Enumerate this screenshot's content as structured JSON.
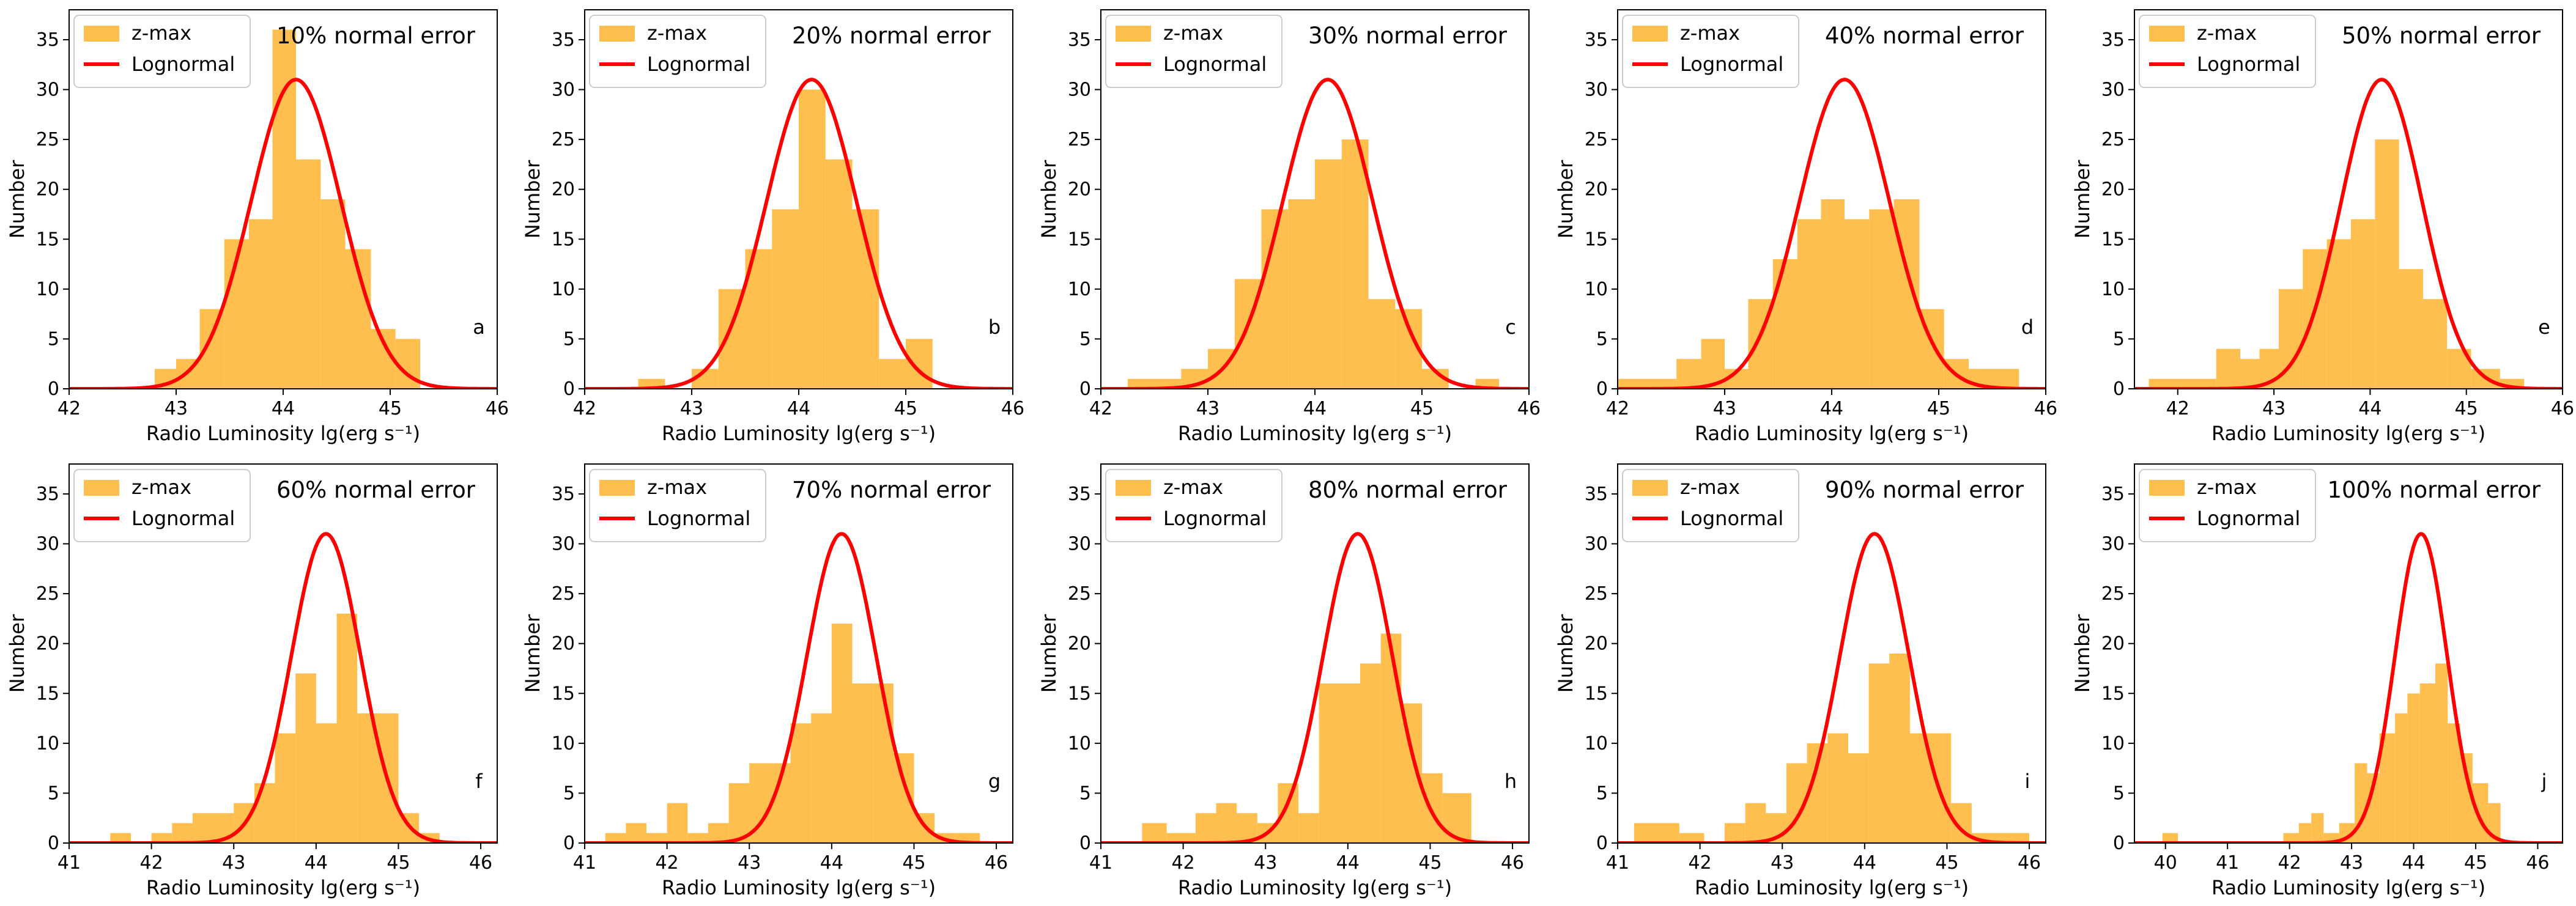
{
  "figure": {
    "colors": {
      "hist": "#FFBF4F",
      "curve": "#FF0000",
      "axis": "#000000"
    }
  },
  "chart_data": [
    {
      "type": "bar",
      "panel": "a",
      "title": "10% normal error",
      "xlabel": "Radio Luminosity lg(erg s⁻¹)",
      "ylabel": "Number",
      "xlim": [
        42,
        46
      ],
      "ylim": [
        0,
        38
      ],
      "xticks": [
        42,
        43,
        44,
        45,
        46
      ],
      "yticks": [
        0,
        5,
        10,
        15,
        20,
        25,
        30,
        35
      ],
      "legend": [
        "z-max",
        "Lognormal"
      ],
      "legend_position": "top-left",
      "lognormal": {
        "mean": 44.12,
        "sigma": 0.42,
        "peak": 31
      },
      "bins": [
        {
          "x0": 42.8,
          "x1": 43.0,
          "value": 2
        },
        {
          "x0": 43.0,
          "x1": 43.22,
          "value": 3
        },
        {
          "x0": 43.22,
          "x1": 43.45,
          "value": 8
        },
        {
          "x0": 43.45,
          "x1": 43.68,
          "value": 15
        },
        {
          "x0": 43.68,
          "x1": 43.9,
          "value": 17
        },
        {
          "x0": 43.9,
          "x1": 44.12,
          "value": 36
        },
        {
          "x0": 44.12,
          "x1": 44.35,
          "value": 23
        },
        {
          "x0": 44.35,
          "x1": 44.58,
          "value": 19
        },
        {
          "x0": 44.58,
          "x1": 44.82,
          "value": 14
        },
        {
          "x0": 44.82,
          "x1": 45.05,
          "value": 6
        },
        {
          "x0": 45.05,
          "x1": 45.28,
          "value": 5
        }
      ]
    },
    {
      "type": "bar",
      "panel": "b",
      "title": "20% normal error",
      "xlabel": "Radio Luminosity lg(erg s⁻¹)",
      "ylabel": "Number",
      "xlim": [
        42,
        46
      ],
      "ylim": [
        0,
        38
      ],
      "xticks": [
        42,
        43,
        44,
        45,
        46
      ],
      "yticks": [
        0,
        5,
        10,
        15,
        20,
        25,
        30,
        35
      ],
      "legend": [
        "z-max",
        "Lognormal"
      ],
      "legend_position": "top-left",
      "lognormal": {
        "mean": 44.12,
        "sigma": 0.42,
        "peak": 31
      },
      "bins": [
        {
          "x0": 42.5,
          "x1": 42.75,
          "value": 1
        },
        {
          "x0": 43.0,
          "x1": 43.25,
          "value": 2
        },
        {
          "x0": 43.25,
          "x1": 43.5,
          "value": 10
        },
        {
          "x0": 43.5,
          "x1": 43.75,
          "value": 14
        },
        {
          "x0": 43.75,
          "x1": 44.0,
          "value": 18
        },
        {
          "x0": 44.0,
          "x1": 44.25,
          "value": 30
        },
        {
          "x0": 44.25,
          "x1": 44.5,
          "value": 23
        },
        {
          "x0": 44.5,
          "x1": 44.75,
          "value": 18
        },
        {
          "x0": 44.75,
          "x1": 45.0,
          "value": 3
        },
        {
          "x0": 45.0,
          "x1": 45.25,
          "value": 5
        }
      ]
    },
    {
      "type": "bar",
      "panel": "c",
      "title": "30% normal error",
      "xlabel": "Radio Luminosity lg(erg s⁻¹)",
      "ylabel": "Number",
      "xlim": [
        42,
        46
      ],
      "ylim": [
        0,
        38
      ],
      "xticks": [
        42,
        43,
        44,
        45,
        46
      ],
      "yticks": [
        0,
        5,
        10,
        15,
        20,
        25,
        30,
        35
      ],
      "legend": [
        "z-max",
        "Lognormal"
      ],
      "legend_position": "top-left",
      "lognormal": {
        "mean": 44.12,
        "sigma": 0.42,
        "peak": 31
      },
      "bins": [
        {
          "x0": 42.25,
          "x1": 42.75,
          "value": 1
        },
        {
          "x0": 42.75,
          "x1": 43.0,
          "value": 2
        },
        {
          "x0": 43.0,
          "x1": 43.25,
          "value": 4
        },
        {
          "x0": 43.25,
          "x1": 43.5,
          "value": 11
        },
        {
          "x0": 43.5,
          "x1": 43.75,
          "value": 18
        },
        {
          "x0": 43.75,
          "x1": 44.0,
          "value": 19
        },
        {
          "x0": 44.0,
          "x1": 44.25,
          "value": 23
        },
        {
          "x0": 44.25,
          "x1": 44.5,
          "value": 25
        },
        {
          "x0": 44.5,
          "x1": 44.75,
          "value": 9
        },
        {
          "x0": 44.75,
          "x1": 45.0,
          "value": 8
        },
        {
          "x0": 45.0,
          "x1": 45.25,
          "value": 2
        },
        {
          "x0": 45.5,
          "x1": 45.72,
          "value": 1
        }
      ]
    },
    {
      "type": "bar",
      "panel": "d",
      "title": "40% normal error",
      "xlabel": "Radio Luminosity lg(erg s⁻¹)",
      "ylabel": "Number",
      "xlim": [
        42,
        46
      ],
      "ylim": [
        0,
        38
      ],
      "xticks": [
        42,
        43,
        44,
        45,
        46
      ],
      "yticks": [
        0,
        5,
        10,
        15,
        20,
        25,
        30,
        35
      ],
      "legend": [
        "z-max",
        "Lognormal"
      ],
      "legend_position": "top-left",
      "lognormal": {
        "mean": 44.12,
        "sigma": 0.42,
        "peak": 31
      },
      "bins": [
        {
          "x0": 42.0,
          "x1": 42.55,
          "value": 1
        },
        {
          "x0": 42.55,
          "x1": 42.78,
          "value": 3
        },
        {
          "x0": 42.78,
          "x1": 43.0,
          "value": 5
        },
        {
          "x0": 43.0,
          "x1": 43.22,
          "value": 2
        },
        {
          "x0": 43.22,
          "x1": 43.45,
          "value": 9
        },
        {
          "x0": 43.45,
          "x1": 43.68,
          "value": 13
        },
        {
          "x0": 43.68,
          "x1": 43.9,
          "value": 17
        },
        {
          "x0": 43.9,
          "x1": 44.12,
          "value": 19
        },
        {
          "x0": 44.12,
          "x1": 44.35,
          "value": 17
        },
        {
          "x0": 44.35,
          "x1": 44.58,
          "value": 18
        },
        {
          "x0": 44.58,
          "x1": 44.82,
          "value": 19
        },
        {
          "x0": 44.82,
          "x1": 45.05,
          "value": 8
        },
        {
          "x0": 45.05,
          "x1": 45.28,
          "value": 3
        },
        {
          "x0": 45.28,
          "x1": 45.75,
          "value": 2
        }
      ]
    },
    {
      "type": "bar",
      "panel": "e",
      "title": "50% normal error",
      "xlabel": "Radio Luminosity lg(erg s⁻¹)",
      "ylabel": "Number",
      "xlim": [
        41.55,
        46
      ],
      "ylim": [
        0,
        38
      ],
      "xticks": [
        42,
        43,
        44,
        45,
        46
      ],
      "yticks": [
        0,
        5,
        10,
        15,
        20,
        25,
        30,
        35
      ],
      "legend": [
        "z-max",
        "Lognormal"
      ],
      "legend_position": "top-left",
      "lognormal": {
        "mean": 44.12,
        "sigma": 0.42,
        "peak": 31
      },
      "bins": [
        {
          "x0": 41.7,
          "x1": 42.4,
          "value": 1
        },
        {
          "x0": 42.4,
          "x1": 42.65,
          "value": 4
        },
        {
          "x0": 42.65,
          "x1": 42.85,
          "value": 3
        },
        {
          "x0": 42.85,
          "x1": 43.05,
          "value": 4
        },
        {
          "x0": 43.05,
          "x1": 43.3,
          "value": 10
        },
        {
          "x0": 43.3,
          "x1": 43.55,
          "value": 14
        },
        {
          "x0": 43.55,
          "x1": 43.8,
          "value": 15
        },
        {
          "x0": 43.8,
          "x1": 44.05,
          "value": 17
        },
        {
          "x0": 44.05,
          "x1": 44.3,
          "value": 25
        },
        {
          "x0": 44.3,
          "x1": 44.55,
          "value": 12
        },
        {
          "x0": 44.55,
          "x1": 44.8,
          "value": 9
        },
        {
          "x0": 44.8,
          "x1": 45.05,
          "value": 4
        },
        {
          "x0": 45.05,
          "x1": 45.35,
          "value": 2
        },
        {
          "x0": 45.35,
          "x1": 45.6,
          "value": 1
        }
      ]
    },
    {
      "type": "bar",
      "panel": "f",
      "title": "60% normal error",
      "xlabel": "Radio Luminosity lg(erg s⁻¹)",
      "ylabel": "Number",
      "xlim": [
        41,
        46.2
      ],
      "ylim": [
        0,
        38
      ],
      "xticks": [
        41,
        42,
        43,
        44,
        45,
        46
      ],
      "yticks": [
        0,
        5,
        10,
        15,
        20,
        25,
        30,
        35
      ],
      "legend": [
        "z-max",
        "Lognormal"
      ],
      "legend_position": "top-left",
      "lognormal": {
        "mean": 44.12,
        "sigma": 0.42,
        "peak": 31
      },
      "bins": [
        {
          "x0": 41.5,
          "x1": 41.75,
          "value": 1
        },
        {
          "x0": 42.0,
          "x1": 42.25,
          "value": 1
        },
        {
          "x0": 42.25,
          "x1": 42.5,
          "value": 2
        },
        {
          "x0": 42.5,
          "x1": 43.0,
          "value": 3
        },
        {
          "x0": 43.0,
          "x1": 43.25,
          "value": 4
        },
        {
          "x0": 43.25,
          "x1": 43.5,
          "value": 6
        },
        {
          "x0": 43.5,
          "x1": 43.75,
          "value": 11
        },
        {
          "x0": 43.75,
          "x1": 44.0,
          "value": 17
        },
        {
          "x0": 44.0,
          "x1": 44.25,
          "value": 12
        },
        {
          "x0": 44.25,
          "x1": 44.5,
          "value": 23
        },
        {
          "x0": 44.5,
          "x1": 44.75,
          "value": 13
        },
        {
          "x0": 44.75,
          "x1": 45.0,
          "value": 13
        },
        {
          "x0": 45.0,
          "x1": 45.25,
          "value": 3
        },
        {
          "x0": 45.25,
          "x1": 45.5,
          "value": 1
        }
      ]
    },
    {
      "type": "bar",
      "panel": "g",
      "title": "70% normal error",
      "xlabel": "Radio Luminosity lg(erg s⁻¹)",
      "ylabel": "Number",
      "xlim": [
        41,
        46.2
      ],
      "ylim": [
        0,
        38
      ],
      "xticks": [
        41,
        42,
        43,
        44,
        45,
        46
      ],
      "yticks": [
        0,
        5,
        10,
        15,
        20,
        25,
        30,
        35
      ],
      "legend": [
        "z-max",
        "Lognormal"
      ],
      "legend_position": "top-left",
      "lognormal": {
        "mean": 44.12,
        "sigma": 0.42,
        "peak": 31
      },
      "bins": [
        {
          "x0": 41.25,
          "x1": 41.5,
          "value": 1
        },
        {
          "x0": 41.5,
          "x1": 41.75,
          "value": 2
        },
        {
          "x0": 41.75,
          "x1": 42.0,
          "value": 1
        },
        {
          "x0": 42.0,
          "x1": 42.25,
          "value": 4
        },
        {
          "x0": 42.25,
          "x1": 42.5,
          "value": 1
        },
        {
          "x0": 42.5,
          "x1": 42.75,
          "value": 2
        },
        {
          "x0": 42.75,
          "x1": 43.0,
          "value": 6
        },
        {
          "x0": 43.0,
          "x1": 43.25,
          "value": 8
        },
        {
          "x0": 43.25,
          "x1": 43.5,
          "value": 8
        },
        {
          "x0": 43.5,
          "x1": 43.75,
          "value": 12
        },
        {
          "x0": 43.75,
          "x1": 44.0,
          "value": 13
        },
        {
          "x0": 44.0,
          "x1": 44.25,
          "value": 22
        },
        {
          "x0": 44.25,
          "x1": 44.5,
          "value": 16
        },
        {
          "x0": 44.5,
          "x1": 44.75,
          "value": 16
        },
        {
          "x0": 44.75,
          "x1": 45.0,
          "value": 9
        },
        {
          "x0": 45.0,
          "x1": 45.25,
          "value": 3
        },
        {
          "x0": 45.25,
          "x1": 45.5,
          "value": 1
        },
        {
          "x0": 45.5,
          "x1": 45.8,
          "value": 1
        }
      ]
    },
    {
      "type": "bar",
      "panel": "h",
      "title": "80% normal error",
      "xlabel": "Radio Luminosity lg(erg s⁻¹)",
      "ylabel": "Number",
      "xlim": [
        41,
        46.2
      ],
      "ylim": [
        0,
        38
      ],
      "xticks": [
        41,
        42,
        43,
        44,
        45,
        46
      ],
      "yticks": [
        0,
        5,
        10,
        15,
        20,
        25,
        30,
        35
      ],
      "legend": [
        "z-max",
        "Lognormal"
      ],
      "legend_position": "top-left",
      "lognormal": {
        "mean": 44.12,
        "sigma": 0.42,
        "peak": 31
      },
      "bins": [
        {
          "x0": 41.5,
          "x1": 41.8,
          "value": 2
        },
        {
          "x0": 41.8,
          "x1": 42.15,
          "value": 1
        },
        {
          "x0": 42.15,
          "x1": 42.4,
          "value": 3
        },
        {
          "x0": 42.4,
          "x1": 42.65,
          "value": 4
        },
        {
          "x0": 42.65,
          "x1": 42.9,
          "value": 3
        },
        {
          "x0": 42.9,
          "x1": 43.15,
          "value": 2
        },
        {
          "x0": 43.15,
          "x1": 43.4,
          "value": 6
        },
        {
          "x0": 43.4,
          "x1": 43.65,
          "value": 3
        },
        {
          "x0": 43.65,
          "x1": 43.9,
          "value": 16
        },
        {
          "x0": 43.9,
          "x1": 44.15,
          "value": 16
        },
        {
          "x0": 44.15,
          "x1": 44.4,
          "value": 18
        },
        {
          "x0": 44.4,
          "x1": 44.65,
          "value": 21
        },
        {
          "x0": 44.65,
          "x1": 44.9,
          "value": 14
        },
        {
          "x0": 44.9,
          "x1": 45.15,
          "value": 7
        },
        {
          "x0": 45.15,
          "x1": 45.5,
          "value": 5
        }
      ]
    },
    {
      "type": "bar",
      "panel": "i",
      "title": "90% normal error",
      "xlabel": "Radio Luminosity lg(erg s⁻¹)",
      "ylabel": "Number",
      "xlim": [
        41,
        46.2
      ],
      "ylim": [
        0,
        38
      ],
      "xticks": [
        41,
        42,
        43,
        44,
        45,
        46
      ],
      "yticks": [
        0,
        5,
        10,
        15,
        20,
        25,
        30,
        35
      ],
      "legend": [
        "z-max",
        "Lognormal"
      ],
      "legend_position": "top-left",
      "lognormal": {
        "mean": 44.12,
        "sigma": 0.42,
        "peak": 31
      },
      "bins": [
        {
          "x0": 41.2,
          "x1": 41.75,
          "value": 2
        },
        {
          "x0": 41.75,
          "x1": 42.05,
          "value": 1
        },
        {
          "x0": 42.3,
          "x1": 42.55,
          "value": 2
        },
        {
          "x0": 42.55,
          "x1": 42.8,
          "value": 4
        },
        {
          "x0": 42.8,
          "x1": 43.05,
          "value": 3
        },
        {
          "x0": 43.05,
          "x1": 43.3,
          "value": 8
        },
        {
          "x0": 43.3,
          "x1": 43.55,
          "value": 10
        },
        {
          "x0": 43.55,
          "x1": 43.8,
          "value": 11
        },
        {
          "x0": 43.8,
          "x1": 44.05,
          "value": 9
        },
        {
          "x0": 44.05,
          "x1": 44.3,
          "value": 18
        },
        {
          "x0": 44.3,
          "x1": 44.55,
          "value": 19
        },
        {
          "x0": 44.55,
          "x1": 44.8,
          "value": 11
        },
        {
          "x0": 44.8,
          "x1": 45.05,
          "value": 11
        },
        {
          "x0": 45.05,
          "x1": 45.3,
          "value": 4
        },
        {
          "x0": 45.3,
          "x1": 46.0,
          "value": 1
        }
      ]
    },
    {
      "type": "bar",
      "panel": "j",
      "title": "100% normal error",
      "xlabel": "Radio Luminosity lg(erg s⁻¹)",
      "ylabel": "Number",
      "xlim": [
        39.5,
        46.4
      ],
      "ylim": [
        0,
        38
      ],
      "xticks": [
        40,
        41,
        42,
        43,
        44,
        45,
        46
      ],
      "yticks": [
        0,
        5,
        10,
        15,
        20,
        25,
        30,
        35
      ],
      "legend": [
        "z-max",
        "Lognormal"
      ],
      "legend_position": "top-left",
      "lognormal": {
        "mean": 44.12,
        "sigma": 0.42,
        "peak": 31
      },
      "bins": [
        {
          "x0": 39.95,
          "x1": 40.2,
          "value": 1
        },
        {
          "x0": 41.9,
          "x1": 42.15,
          "value": 1
        },
        {
          "x0": 42.15,
          "x1": 42.35,
          "value": 2
        },
        {
          "x0": 42.35,
          "x1": 42.55,
          "value": 3
        },
        {
          "x0": 42.55,
          "x1": 42.8,
          "value": 1
        },
        {
          "x0": 42.8,
          "x1": 43.05,
          "value": 2
        },
        {
          "x0": 43.05,
          "x1": 43.25,
          "value": 8
        },
        {
          "x0": 43.25,
          "x1": 43.45,
          "value": 7
        },
        {
          "x0": 43.45,
          "x1": 43.7,
          "value": 11
        },
        {
          "x0": 43.7,
          "x1": 43.9,
          "value": 13
        },
        {
          "x0": 43.9,
          "x1": 44.1,
          "value": 15
        },
        {
          "x0": 44.1,
          "x1": 44.35,
          "value": 16
        },
        {
          "x0": 44.35,
          "x1": 44.55,
          "value": 18
        },
        {
          "x0": 44.55,
          "x1": 44.75,
          "value": 12
        },
        {
          "x0": 44.75,
          "x1": 44.95,
          "value": 9
        },
        {
          "x0": 44.95,
          "x1": 45.2,
          "value": 6
        },
        {
          "x0": 45.2,
          "x1": 45.4,
          "value": 4
        }
      ]
    }
  ]
}
